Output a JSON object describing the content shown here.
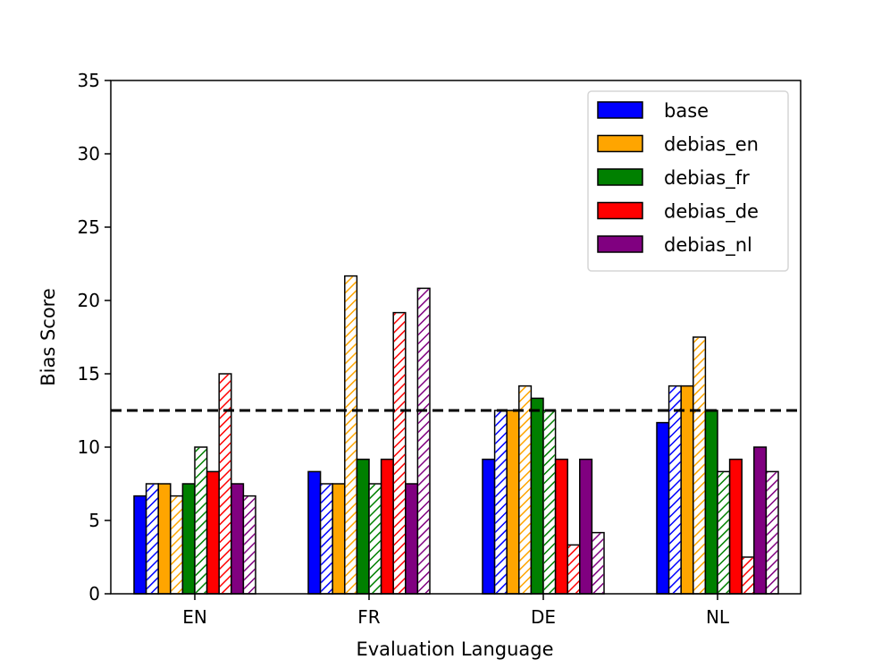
{
  "chart_data": {
    "type": "bar",
    "xlabel": "Evaluation Language",
    "ylabel": "Bias Score",
    "ylim": [
      0,
      35
    ],
    "yticks": [
      0,
      5,
      10,
      15,
      20,
      25,
      30,
      35
    ],
    "categories": [
      "EN",
      "FR",
      "DE",
      "NL"
    ],
    "reference_line": {
      "y": 12.5,
      "style": "dashed",
      "color": "#000000"
    },
    "legend": {
      "position": "top-right"
    },
    "series": [
      {
        "name": "base",
        "color": "#0000ff",
        "values": [
          6.67,
          8.33,
          9.17,
          11.67
        ],
        "hatched_values": [
          7.5,
          7.5,
          12.5,
          14.17
        ]
      },
      {
        "name": "debias_en",
        "color": "#ffa500",
        "values": [
          7.5,
          7.5,
          12.5,
          14.17
        ],
        "hatched_values": [
          6.67,
          21.67,
          14.17,
          17.5
        ]
      },
      {
        "name": "debias_fr",
        "color": "#008000",
        "values": [
          7.5,
          9.17,
          13.33,
          12.5
        ],
        "hatched_values": [
          10.0,
          7.5,
          12.5,
          8.33
        ]
      },
      {
        "name": "debias_de",
        "color": "#ff0000",
        "values": [
          8.33,
          9.17,
          9.17,
          9.17
        ],
        "hatched_values": [
          15.0,
          19.17,
          3.33,
          2.5
        ]
      },
      {
        "name": "debias_nl",
        "color": "#800080",
        "values": [
          7.5,
          7.5,
          9.17,
          10.0
        ],
        "hatched_values": [
          6.67,
          20.83,
          4.17,
          8.33
        ]
      }
    ]
  }
}
